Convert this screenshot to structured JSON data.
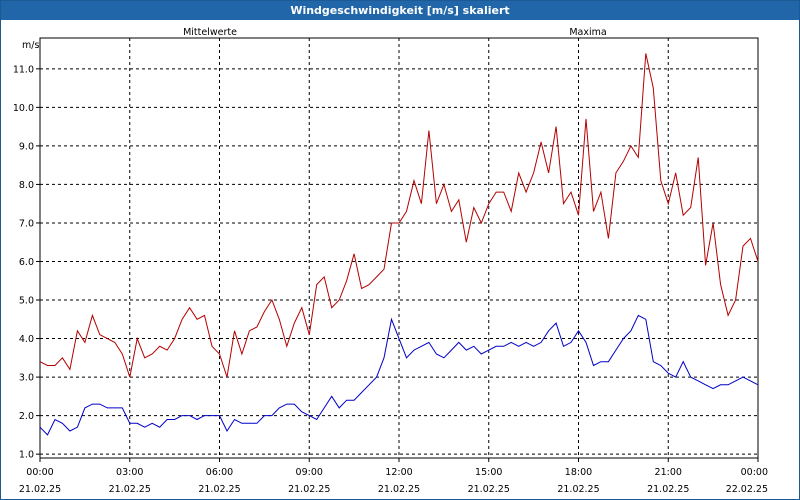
{
  "window": {
    "title": "Windgeschwindigkeit [m/s] skaliert"
  },
  "chart_data": {
    "type": "line",
    "title": "Windgeschwindigkeit [m/s] skaliert",
    "ylabel": "m/s",
    "ylim": [
      0.9,
      11.8
    ],
    "yticks": [
      "1.0",
      "2.0",
      "3.0",
      "4.0",
      "5.0",
      "6.0",
      "7.0",
      "8.0",
      "9.0",
      "10.0",
      "11.0"
    ],
    "xlim": [
      0,
      24
    ],
    "xticks": [
      {
        "time": "00:00",
        "date": "21.02.25"
      },
      {
        "time": "03:00",
        "date": "21.02.25"
      },
      {
        "time": "06:00",
        "date": "21.02.25"
      },
      {
        "time": "09:00",
        "date": "21.02.25"
      },
      {
        "time": "12:00",
        "date": "21.02.25"
      },
      {
        "time": "15:00",
        "date": "21.02.25"
      },
      {
        "time": "18:00",
        "date": "21.02.25"
      },
      {
        "time": "21:00",
        "date": "21.02.25"
      },
      {
        "time": "00:00",
        "date": "22.02.25"
      }
    ],
    "grid": true,
    "series": [
      {
        "name": "Mittelwerte",
        "color": "#0000c8",
        "points": [
          [
            0,
            1.7
          ],
          [
            0.25,
            1.5
          ],
          [
            0.5,
            1.9
          ],
          [
            0.75,
            1.8
          ],
          [
            1,
            1.6
          ],
          [
            1.25,
            1.7
          ],
          [
            1.5,
            2.2
          ],
          [
            1.75,
            2.3
          ],
          [
            2,
            2.3
          ],
          [
            2.25,
            2.2
          ],
          [
            2.5,
            2.2
          ],
          [
            2.75,
            2.2
          ],
          [
            3,
            1.8
          ],
          [
            3.25,
            1.8
          ],
          [
            3.5,
            1.7
          ],
          [
            3.75,
            1.8
          ],
          [
            4,
            1.7
          ],
          [
            4.25,
            1.9
          ],
          [
            4.5,
            1.9
          ],
          [
            4.75,
            2.0
          ],
          [
            5,
            2.0
          ],
          [
            5.25,
            1.9
          ],
          [
            5.5,
            2.0
          ],
          [
            5.75,
            2.0
          ],
          [
            6,
            2.0
          ],
          [
            6.25,
            1.6
          ],
          [
            6.5,
            1.9
          ],
          [
            6.75,
            1.8
          ],
          [
            7,
            1.8
          ],
          [
            7.25,
            1.8
          ],
          [
            7.5,
            2.0
          ],
          [
            7.75,
            2.0
          ],
          [
            8,
            2.2
          ],
          [
            8.25,
            2.3
          ],
          [
            8.5,
            2.3
          ],
          [
            8.75,
            2.1
          ],
          [
            9,
            2.0
          ],
          [
            9.25,
            1.9
          ],
          [
            9.5,
            2.2
          ],
          [
            9.75,
            2.5
          ],
          [
            10,
            2.2
          ],
          [
            10.25,
            2.4
          ],
          [
            10.5,
            2.4
          ],
          [
            10.75,
            2.6
          ],
          [
            11,
            2.8
          ],
          [
            11.25,
            3.0
          ],
          [
            11.5,
            3.5
          ],
          [
            11.75,
            4.5
          ],
          [
            12,
            4.0
          ],
          [
            12.25,
            3.5
          ],
          [
            12.5,
            3.7
          ],
          [
            12.75,
            3.8
          ],
          [
            13,
            3.9
          ],
          [
            13.25,
            3.6
          ],
          [
            13.5,
            3.5
          ],
          [
            13.75,
            3.7
          ],
          [
            14,
            3.9
          ],
          [
            14.25,
            3.7
          ],
          [
            14.5,
            3.8
          ],
          [
            14.75,
            3.6
          ],
          [
            15,
            3.7
          ],
          [
            15.25,
            3.8
          ],
          [
            15.5,
            3.8
          ],
          [
            15.75,
            3.9
          ],
          [
            16,
            3.8
          ],
          [
            16.25,
            3.9
          ],
          [
            16.5,
            3.8
          ],
          [
            16.75,
            3.9
          ],
          [
            17,
            4.2
          ],
          [
            17.25,
            4.4
          ],
          [
            17.5,
            3.8
          ],
          [
            17.75,
            3.9
          ],
          [
            18,
            4.2
          ],
          [
            18.25,
            3.9
          ],
          [
            18.5,
            3.3
          ],
          [
            18.75,
            3.4
          ],
          [
            19,
            3.4
          ],
          [
            19.25,
            3.7
          ],
          [
            19.5,
            4.0
          ],
          [
            19.75,
            4.2
          ],
          [
            20,
            4.6
          ],
          [
            20.25,
            4.5
          ],
          [
            20.5,
            3.4
          ],
          [
            20.75,
            3.3
          ],
          [
            21,
            3.1
          ],
          [
            21.25,
            3.0
          ],
          [
            21.5,
            3.4
          ],
          [
            21.75,
            3.0
          ],
          [
            22,
            2.9
          ],
          [
            22.25,
            2.8
          ],
          [
            22.5,
            2.7
          ],
          [
            22.75,
            2.8
          ],
          [
            23,
            2.8
          ],
          [
            23.25,
            2.9
          ],
          [
            23.5,
            3.0
          ],
          [
            23.75,
            2.9
          ],
          [
            24,
            2.8
          ]
        ]
      },
      {
        "name": "Maxima",
        "color": "#b40000",
        "points": [
          [
            0,
            3.4
          ],
          [
            0.25,
            3.3
          ],
          [
            0.5,
            3.3
          ],
          [
            0.75,
            3.5
          ],
          [
            1,
            3.2
          ],
          [
            1.25,
            4.2
          ],
          [
            1.5,
            3.9
          ],
          [
            1.75,
            4.6
          ],
          [
            2,
            4.1
          ],
          [
            2.25,
            4.0
          ],
          [
            2.5,
            3.9
          ],
          [
            2.75,
            3.6
          ],
          [
            3,
            3.0
          ],
          [
            3.25,
            4.0
          ],
          [
            3.5,
            3.5
          ],
          [
            3.75,
            3.6
          ],
          [
            4,
            3.8
          ],
          [
            4.25,
            3.7
          ],
          [
            4.5,
            4.0
          ],
          [
            4.75,
            4.5
          ],
          [
            5,
            4.8
          ],
          [
            5.25,
            4.5
          ],
          [
            5.5,
            4.6
          ],
          [
            5.75,
            3.8
          ],
          [
            6,
            3.6
          ],
          [
            6.25,
            3.0
          ],
          [
            6.5,
            4.2
          ],
          [
            6.75,
            3.6
          ],
          [
            7,
            4.2
          ],
          [
            7.25,
            4.3
          ],
          [
            7.5,
            4.7
          ],
          [
            7.75,
            5.0
          ],
          [
            8,
            4.5
          ],
          [
            8.25,
            3.8
          ],
          [
            8.5,
            4.4
          ],
          [
            8.75,
            4.8
          ],
          [
            9,
            4.1
          ],
          [
            9.25,
            5.4
          ],
          [
            9.5,
            5.6
          ],
          [
            9.75,
            4.8
          ],
          [
            10,
            5.0
          ],
          [
            10.25,
            5.5
          ],
          [
            10.5,
            6.2
          ],
          [
            10.75,
            5.3
          ],
          [
            11,
            5.4
          ],
          [
            11.25,
            5.6
          ],
          [
            11.5,
            5.8
          ],
          [
            11.75,
            7.0
          ],
          [
            12,
            7.0
          ],
          [
            12.25,
            7.3
          ],
          [
            12.5,
            8.1
          ],
          [
            12.75,
            7.5
          ],
          [
            13,
            9.4
          ],
          [
            13.25,
            7.5
          ],
          [
            13.5,
            8.0
          ],
          [
            13.75,
            7.3
          ],
          [
            14,
            7.6
          ],
          [
            14.25,
            6.5
          ],
          [
            14.5,
            7.4
          ],
          [
            14.75,
            7.0
          ],
          [
            15,
            7.5
          ],
          [
            15.25,
            7.8
          ],
          [
            15.5,
            7.8
          ],
          [
            15.75,
            7.3
          ],
          [
            16,
            8.3
          ],
          [
            16.25,
            7.8
          ],
          [
            16.5,
            8.3
          ],
          [
            16.75,
            9.1
          ],
          [
            17,
            8.3
          ],
          [
            17.25,
            9.5
          ],
          [
            17.5,
            7.5
          ],
          [
            17.75,
            7.8
          ],
          [
            18,
            7.2
          ],
          [
            18.25,
            9.7
          ],
          [
            18.5,
            7.3
          ],
          [
            18.75,
            7.8
          ],
          [
            19,
            6.6
          ],
          [
            19.25,
            8.3
          ],
          [
            19.5,
            8.6
          ],
          [
            19.75,
            9.0
          ],
          [
            20,
            8.7
          ],
          [
            20.25,
            11.4
          ],
          [
            20.5,
            10.5
          ],
          [
            20.75,
            8.1
          ],
          [
            21,
            7.5
          ],
          [
            21.25,
            8.3
          ],
          [
            21.5,
            7.2
          ],
          [
            21.75,
            7.4
          ],
          [
            22,
            8.7
          ],
          [
            22.25,
            5.9
          ],
          [
            22.5,
            7.0
          ],
          [
            22.75,
            5.4
          ],
          [
            23,
            4.6
          ],
          [
            23.25,
            5.0
          ],
          [
            23.5,
            6.4
          ],
          [
            23.75,
            6.6
          ],
          [
            24,
            6.0
          ]
        ]
      }
    ]
  }
}
